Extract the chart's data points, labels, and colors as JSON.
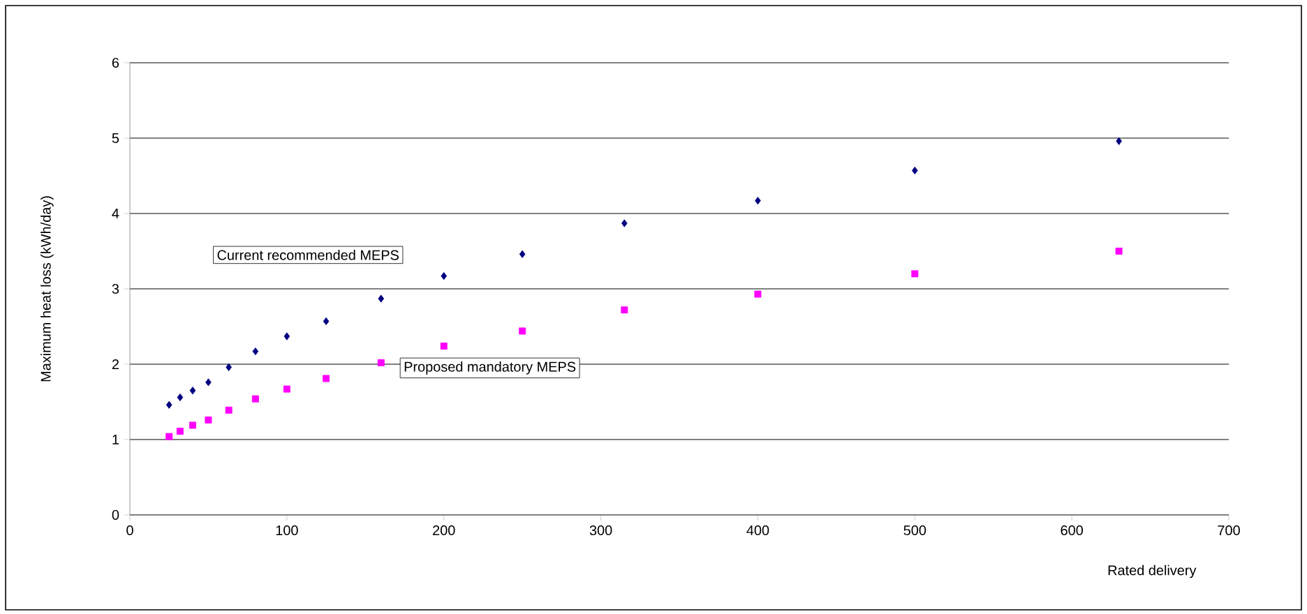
{
  "chart_data": {
    "type": "scatter",
    "xlabel": "Rated delivery",
    "ylabel": "Maximum heat loss (kWh/day)",
    "xlim": [
      0,
      700
    ],
    "xticks": [
      0,
      100,
      200,
      300,
      400,
      500,
      600,
      700
    ],
    "ylim": [
      0,
      6
    ],
    "yticks": [
      0,
      1,
      2,
      3,
      4,
      5,
      6
    ],
    "grid": "y",
    "series": [
      {
        "name": "Current recommended MEPS",
        "color": "#000080",
        "marker": "diamond",
        "x": [
          25,
          32,
          40,
          50,
          63,
          80,
          100,
          125,
          160,
          200,
          250,
          315,
          400,
          500,
          630
        ],
        "values": [
          1.46,
          1.56,
          1.65,
          1.76,
          1.96,
          2.17,
          2.37,
          2.57,
          2.87,
          3.17,
          3.46,
          3.87,
          4.17,
          4.57,
          4.96
        ]
      },
      {
        "name": "Proposed mandatory MEPS",
        "color": "#ff00ff",
        "marker": "square",
        "x": [
          25,
          32,
          40,
          50,
          63,
          80,
          100,
          125,
          160,
          200,
          250,
          315,
          400,
          500,
          630
        ],
        "values": [
          1.04,
          1.11,
          1.19,
          1.26,
          1.39,
          1.54,
          1.67,
          1.81,
          2.02,
          2.24,
          2.44,
          2.72,
          2.93,
          3.2,
          3.5
        ]
      }
    ]
  }
}
